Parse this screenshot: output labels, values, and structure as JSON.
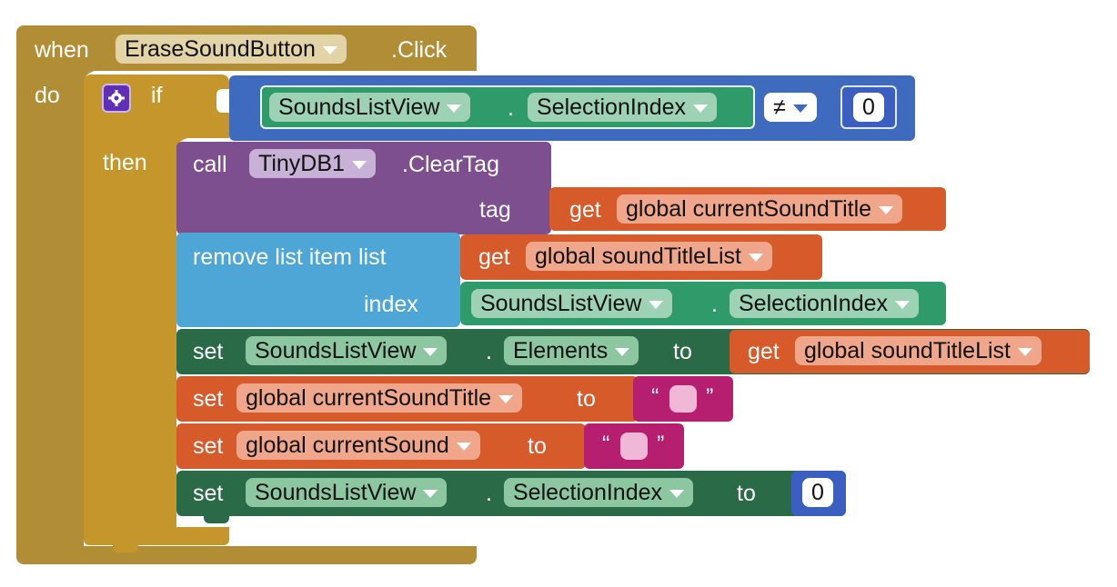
{
  "colors": {
    "event": "#b18e35",
    "control": "#c5962b",
    "logic_blue": "#3e6bbd",
    "math": "#3a5fc0",
    "component_green": "#2f9a6a",
    "component_dark": "#2a6a47",
    "tinydb": "#7d4f8e",
    "list": "#4ea6d6",
    "variable": "#d65a2a",
    "text": "#b61f6f"
  },
  "event": {
    "when": "when",
    "component": "EraseSoundButton",
    "event_name": ".Click",
    "do": "do"
  },
  "if_block": {
    "if": "if",
    "then": "then",
    "condition": {
      "component": "SoundsListView",
      "dot": ".",
      "property": "SelectionIndex",
      "operator": "≠",
      "number": "0"
    }
  },
  "clear_tag": {
    "call": "call",
    "component": "TinyDB1",
    "method": ".ClearTag",
    "tag_label": "tag",
    "get": "get",
    "variable": "global currentSoundTitle"
  },
  "remove_list_item": {
    "label": "remove list item  list",
    "get": "get",
    "list_variable": "global soundTitleList",
    "index_label": "index",
    "component": "SoundsListView",
    "dot": ".",
    "property": "SelectionIndex"
  },
  "set_elements": {
    "set": "set",
    "component": "SoundsListView",
    "dot": ".",
    "property": "Elements",
    "to": "to",
    "get": "get",
    "variable": "global soundTitleList"
  },
  "set_title": {
    "set": "set",
    "variable": "global currentSoundTitle",
    "to": "to",
    "open_quote": "“",
    "close_quote": "”"
  },
  "set_sound": {
    "set": "set",
    "variable": "global currentSound",
    "to": "to",
    "open_quote": "“",
    "close_quote": "”"
  },
  "set_index": {
    "set": "set",
    "component": "SoundsListView",
    "dot": ".",
    "property": "SelectionIndex",
    "to": "to",
    "number": "0"
  }
}
